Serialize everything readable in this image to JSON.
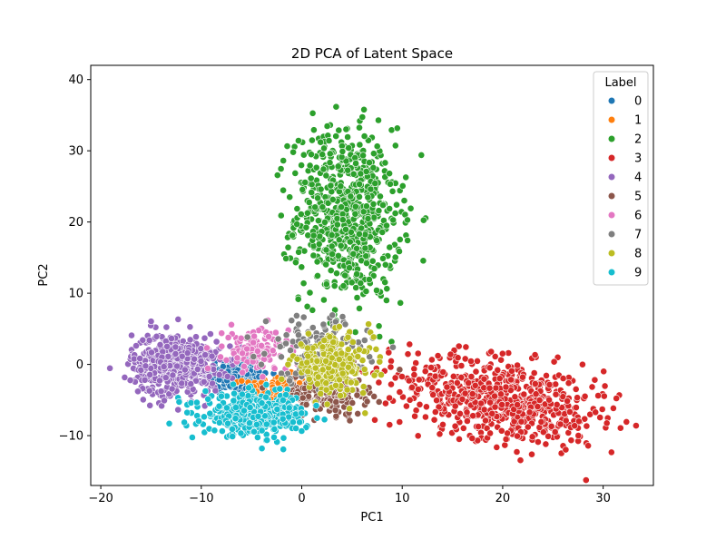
{
  "chart_data": {
    "type": "scatter",
    "title": "2D PCA of Latent Space",
    "xlabel": "PC1",
    "ylabel": "PC2",
    "xlim": [
      -21,
      35
    ],
    "ylim": [
      -17,
      42
    ],
    "xticks": [
      -20,
      -10,
      0,
      10,
      20,
      30
    ],
    "xtick_labels": [
      "−20",
      "−10",
      "0",
      "10",
      "20",
      "30"
    ],
    "yticks": [
      -10,
      0,
      10,
      20,
      30,
      40
    ],
    "ytick_labels": [
      "−10",
      "0",
      "10",
      "20",
      "30",
      "40"
    ],
    "grid": false,
    "legend": {
      "title": "Label",
      "placement": "top-right"
    },
    "series": [
      {
        "name": "0",
        "color": "#1f77b4",
        "center": [
          -6.5,
          -1.5
        ],
        "spread": [
          1.6,
          1.4
        ],
        "count": 160
      },
      {
        "name": "1",
        "color": "#ff7f0e",
        "center": [
          -2.5,
          -3.5
        ],
        "spread": [
          1.6,
          1.0
        ],
        "count": 110
      },
      {
        "name": "2",
        "color": "#2ca02c",
        "center": [
          4.5,
          21.0
        ],
        "spread": [
          2.6,
          6.0
        ],
        "count": 700
      },
      {
        "name": "3",
        "color": "#d62728",
        "center": [
          20.0,
          -5.0
        ],
        "spread": [
          5.5,
          2.8
        ],
        "count": 650
      },
      {
        "name": "4",
        "color": "#9467bd",
        "center": [
          -12.5,
          0.0
        ],
        "spread": [
          2.2,
          2.2
        ],
        "count": 520
      },
      {
        "name": "5",
        "color": "#8c564b",
        "center": [
          2.5,
          -4.0
        ],
        "spread": [
          2.0,
          1.5
        ],
        "count": 200
      },
      {
        "name": "6",
        "color": "#e377c2",
        "center": [
          -4.5,
          2.0
        ],
        "spread": [
          1.6,
          1.5
        ],
        "count": 140
      },
      {
        "name": "7",
        "color": "#7f7f7f",
        "center": [
          1.5,
          2.0
        ],
        "spread": [
          2.5,
          2.3
        ],
        "count": 160
      },
      {
        "name": "8",
        "color": "#bcbd22",
        "center": [
          3.0,
          0.0
        ],
        "spread": [
          2.0,
          2.0
        ],
        "count": 260
      },
      {
        "name": "9",
        "color": "#17becf",
        "center": [
          -4.5,
          -7.0
        ],
        "spread": [
          2.6,
          1.4
        ],
        "count": 440
      }
    ]
  }
}
